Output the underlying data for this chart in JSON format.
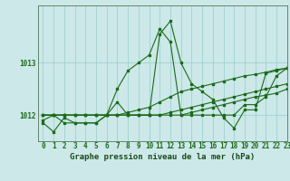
{
  "title": "Graphe pression niveau de la mer (hPa)",
  "bg_color": "#cce8e8",
  "grid_color": "#99cccc",
  "line_color": "#1a6b1a",
  "text_color": "#1a6b1a",
  "xlabel_color": "#1a4a1a",
  "hours": [
    0,
    1,
    2,
    3,
    4,
    5,
    6,
    7,
    8,
    9,
    10,
    11,
    12,
    13,
    14,
    15,
    16,
    17,
    18,
    19,
    20,
    21,
    22,
    23
  ],
  "series1": [
    1011.85,
    1011.68,
    1011.95,
    1011.85,
    1011.85,
    1011.85,
    1012.0,
    1012.25,
    1012.0,
    1012.0,
    1012.0,
    1013.55,
    1013.8,
    1013.0,
    1012.6,
    1012.45,
    1012.3,
    1011.95,
    1011.75,
    1012.1,
    1012.1,
    1012.8,
    1012.85,
    1012.9
  ],
  "series2": [
    1011.9,
    1012.0,
    1011.85,
    1011.85,
    1011.85,
    1011.85,
    1012.0,
    1012.5,
    1012.85,
    1013.0,
    1013.15,
    1013.65,
    1013.4,
    1012.0,
    1012.0,
    1012.0,
    1012.0,
    1012.0,
    1012.0,
    1012.2,
    1012.2,
    1012.35,
    1012.75,
    1012.9
  ],
  "series3": [
    1012.0,
    1012.0,
    1012.0,
    1012.0,
    1012.0,
    1012.0,
    1012.0,
    1012.0,
    1012.05,
    1012.1,
    1012.15,
    1012.25,
    1012.35,
    1012.45,
    1012.5,
    1012.55,
    1012.6,
    1012.65,
    1012.7,
    1012.75,
    1012.78,
    1012.82,
    1012.87,
    1012.9
  ],
  "series4": [
    1012.0,
    1012.0,
    1012.0,
    1012.0,
    1012.0,
    1012.0,
    1012.0,
    1012.0,
    1012.0,
    1012.0,
    1012.0,
    1012.0,
    1012.05,
    1012.1,
    1012.15,
    1012.2,
    1012.25,
    1012.3,
    1012.35,
    1012.4,
    1012.45,
    1012.5,
    1012.55,
    1012.6
  ],
  "series5": [
    1012.0,
    1012.0,
    1012.0,
    1012.0,
    1012.0,
    1012.0,
    1012.0,
    1012.0,
    1012.0,
    1012.0,
    1012.0,
    1012.0,
    1012.0,
    1012.0,
    1012.05,
    1012.1,
    1012.15,
    1012.2,
    1012.25,
    1012.3,
    1012.35,
    1012.38,
    1012.42,
    1012.5
  ],
  "ylim_min": 1011.5,
  "ylim_max": 1014.1,
  "yticks": [
    1012,
    1013
  ],
  "xlim_min": -0.5,
  "xlim_max": 23,
  "tick_fontsize": 5.5,
  "label_fontsize": 6.5
}
